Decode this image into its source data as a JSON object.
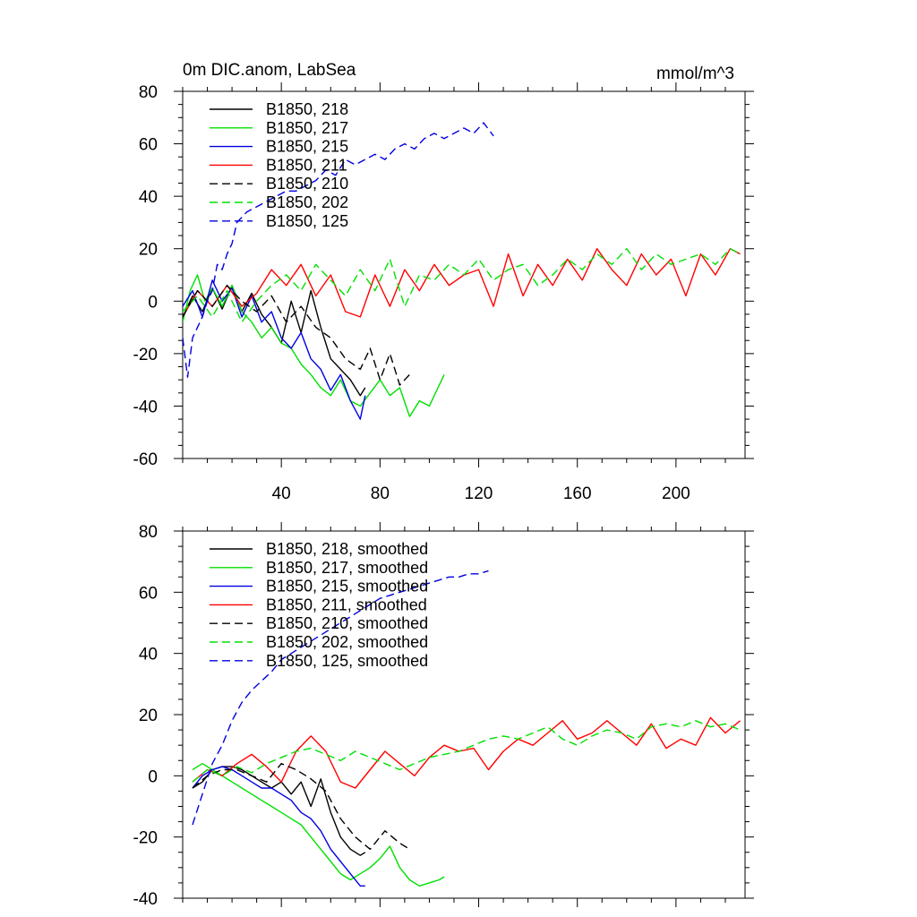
{
  "chart_data": [
    {
      "type": "line",
      "title": "0m DIC.anom, LabSea",
      "units": "mmol/m^3",
      "xlabel": "",
      "ylabel": "",
      "xlim": [
        0,
        228
      ],
      "ylim": [
        -60,
        80
      ],
      "xticks": [
        40,
        80,
        120,
        160,
        200
      ],
      "yticks": [
        -60,
        -40,
        -20,
        0,
        20,
        40,
        60,
        80
      ],
      "show_x_tick_labels": true,
      "legend": "top-left",
      "series": [
        {
          "name": "B1850, 218",
          "color": "#000000",
          "dash": "solid",
          "x": [
            0,
            4,
            8,
            12,
            16,
            20,
            24,
            28,
            32,
            36,
            40,
            44,
            48,
            52,
            56,
            60,
            64,
            68,
            72,
            74
          ],
          "y": [
            -6,
            2,
            -4,
            5,
            -3,
            6,
            -4,
            3,
            -5,
            -10,
            -16,
            0,
            -12,
            4,
            -10,
            -22,
            -26,
            -30,
            -36,
            -33
          ]
        },
        {
          "name": "B1850, 217",
          "color": "#00e000",
          "dash": "solid",
          "x": [
            0,
            3,
            6,
            9,
            12,
            16,
            20,
            24,
            28,
            32,
            36,
            40,
            44,
            48,
            52,
            56,
            60,
            64,
            68,
            72,
            76,
            80,
            84,
            88,
            92,
            96,
            100,
            104,
            106
          ],
          "y": [
            -8,
            4,
            10,
            0,
            5,
            -2,
            6,
            -4,
            -8,
            -14,
            -10,
            -16,
            -18,
            -24,
            -28,
            -33,
            -36,
            -30,
            -38,
            -40,
            -35,
            -30,
            -36,
            -33,
            -44,
            -38,
            -40,
            -32,
            -28
          ]
        },
        {
          "name": "B1850, 215",
          "color": "#0000e0",
          "dash": "solid",
          "x": [
            0,
            4,
            8,
            12,
            16,
            20,
            24,
            28,
            32,
            36,
            40,
            44,
            48,
            52,
            56,
            60,
            64,
            68,
            72,
            74
          ],
          "y": [
            -2,
            4,
            -6,
            8,
            0,
            5,
            -6,
            2,
            -8,
            -4,
            -14,
            -18,
            -12,
            -22,
            -26,
            -34,
            -28,
            -38,
            -45,
            -36
          ]
        },
        {
          "name": "B1850, 211",
          "color": "#ff0000",
          "dash": "solid",
          "x": [
            0,
            6,
            12,
            18,
            24,
            30,
            36,
            42,
            48,
            54,
            60,
            66,
            72,
            78,
            84,
            90,
            96,
            102,
            108,
            114,
            120,
            126,
            132,
            138,
            144,
            150,
            156,
            162,
            168,
            174,
            180,
            186,
            192,
            198,
            204,
            210,
            216,
            222,
            226
          ],
          "y": [
            -6,
            4,
            -2,
            6,
            -2,
            3,
            12,
            6,
            14,
            2,
            10,
            -4,
            -6,
            10,
            -2,
            12,
            4,
            14,
            6,
            10,
            12,
            -2,
            18,
            2,
            14,
            6,
            16,
            8,
            20,
            12,
            6,
            18,
            10,
            16,
            2,
            18,
            10,
            20,
            18
          ]
        },
        {
          "name": "B1850, 210",
          "color": "#000000",
          "dash": "dash",
          "x": [
            0,
            6,
            12,
            18,
            24,
            30,
            36,
            42,
            48,
            54,
            60,
            66,
            72,
            76,
            80,
            84,
            88,
            92
          ],
          "y": [
            -6,
            4,
            -2,
            6,
            0,
            -4,
            2,
            -8,
            -2,
            -10,
            -14,
            -22,
            -26,
            -18,
            -30,
            -20,
            -32,
            -28
          ]
        },
        {
          "name": "B1850, 202",
          "color": "#00e000",
          "dash": "dash",
          "x": [
            0,
            6,
            12,
            18,
            24,
            30,
            36,
            42,
            48,
            54,
            60,
            66,
            72,
            78,
            84,
            90,
            96,
            102,
            108,
            114,
            120,
            126,
            132,
            138,
            144,
            150,
            156,
            162,
            168,
            174,
            180,
            186,
            192,
            198,
            204,
            210,
            216,
            222,
            226
          ],
          "y": [
            -4,
            2,
            -6,
            4,
            -8,
            0,
            6,
            10,
            4,
            14,
            8,
            2,
            12,
            4,
            16,
            -2,
            10,
            8,
            14,
            10,
            16,
            8,
            12,
            14,
            6,
            10,
            16,
            12,
            18,
            14,
            20,
            12,
            18,
            14,
            16,
            18,
            14,
            20,
            18
          ]
        },
        {
          "name": "B1850, 125",
          "color": "#0000e0",
          "dash": "dash",
          "x": [
            0,
            2,
            4,
            6,
            8,
            10,
            12,
            14,
            16,
            18,
            20,
            22,
            26,
            30,
            34,
            38,
            42,
            46,
            50,
            54,
            58,
            62,
            66,
            70,
            74,
            78,
            82,
            86,
            90,
            94,
            98,
            102,
            106,
            110,
            114,
            118,
            122,
            126
          ],
          "y": [
            -14,
            -29,
            -14,
            -10,
            -6,
            0,
            4,
            14,
            12,
            18,
            22,
            30,
            34,
            36,
            38,
            40,
            42,
            42,
            44,
            46,
            50,
            48,
            54,
            52,
            54,
            56,
            54,
            58,
            60,
            58,
            62,
            64,
            62,
            64,
            66,
            64,
            68,
            63
          ]
        }
      ]
    },
    {
      "type": "line",
      "title": "",
      "xlabel": "",
      "ylabel": "",
      "xlim": [
        0,
        228
      ],
      "ylim": [
        -40,
        80
      ],
      "xticks": [
        40,
        80,
        120,
        160,
        200
      ],
      "yticks": [
        -40,
        -20,
        0,
        20,
        40,
        60,
        80
      ],
      "show_x_tick_labels": false,
      "legend": "top-left",
      "series": [
        {
          "name": "B1850, 218, smoothed",
          "color": "#000000",
          "dash": "solid",
          "x": [
            4,
            8,
            12,
            16,
            20,
            24,
            28,
            32,
            36,
            40,
            44,
            48,
            52,
            56,
            60,
            64,
            68,
            72,
            74
          ],
          "y": [
            -4,
            -2,
            2,
            3,
            3,
            2,
            0,
            -2,
            -4,
            -2,
            -6,
            -2,
            -10,
            -1,
            -12,
            -20,
            -24,
            -26,
            -25
          ]
        },
        {
          "name": "B1850, 217, smoothed",
          "color": "#00e000",
          "dash": "solid",
          "x": [
            4,
            8,
            12,
            16,
            20,
            24,
            28,
            32,
            36,
            40,
            44,
            48,
            52,
            56,
            60,
            64,
            68,
            72,
            76,
            80,
            84,
            88,
            92,
            96,
            100,
            104,
            106
          ],
          "y": [
            2,
            4,
            2,
            0,
            -2,
            -4,
            -6,
            -8,
            -10,
            -12,
            -14,
            -16,
            -20,
            -24,
            -28,
            -32,
            -34,
            -32,
            -30,
            -27,
            -23,
            -30,
            -34,
            -36,
            -35,
            -34,
            -33
          ]
        },
        {
          "name": "B1850, 215, smoothed",
          "color": "#0000e0",
          "dash": "solid",
          "x": [
            4,
            8,
            12,
            16,
            20,
            24,
            28,
            32,
            36,
            40,
            44,
            48,
            52,
            56,
            60,
            64,
            68,
            72,
            74
          ],
          "y": [
            -4,
            0,
            2,
            3,
            2,
            0,
            -2,
            -4,
            -4,
            -6,
            -8,
            -12,
            -14,
            -18,
            -24,
            -28,
            -32,
            -36,
            -36
          ]
        },
        {
          "name": "B1850, 211, smoothed",
          "color": "#ff0000",
          "dash": "solid",
          "x": [
            4,
            10,
            16,
            22,
            28,
            34,
            40,
            46,
            52,
            58,
            64,
            70,
            76,
            82,
            88,
            94,
            100,
            106,
            112,
            118,
            124,
            130,
            136,
            142,
            148,
            154,
            160,
            166,
            172,
            178,
            184,
            190,
            196,
            202,
            208,
            214,
            220,
            226
          ],
          "y": [
            -2,
            2,
            0,
            4,
            7,
            3,
            -2,
            8,
            13,
            8,
            -2,
            -4,
            2,
            8,
            4,
            0,
            6,
            10,
            8,
            9,
            2,
            8,
            12,
            10,
            14,
            18,
            12,
            14,
            18,
            14,
            10,
            17,
            9,
            12,
            10,
            19,
            14,
            18
          ]
        },
        {
          "name": "B1850, 210, smoothed",
          "color": "#000000",
          "dash": "dash",
          "x": [
            4,
            10,
            16,
            22,
            28,
            34,
            40,
            46,
            52,
            58,
            64,
            70,
            76,
            82,
            88,
            92
          ],
          "y": [
            -4,
            0,
            2,
            2,
            0,
            -2,
            4,
            2,
            -1,
            -5,
            -14,
            -20,
            -24,
            -18,
            -22,
            -24
          ]
        },
        {
          "name": "B1850, 202, smoothed",
          "color": "#00e000",
          "dash": "dash",
          "x": [
            4,
            10,
            16,
            22,
            28,
            34,
            40,
            46,
            52,
            58,
            64,
            70,
            76,
            82,
            88,
            94,
            100,
            106,
            112,
            118,
            124,
            130,
            136,
            142,
            148,
            154,
            160,
            166,
            172,
            178,
            184,
            190,
            196,
            202,
            208,
            214,
            220,
            226
          ],
          "y": [
            -2,
            2,
            0,
            3,
            1,
            4,
            6,
            8,
            9,
            7,
            5,
            8,
            6,
            4,
            2,
            4,
            6,
            7,
            8,
            10,
            12,
            13,
            12,
            14,
            16,
            12,
            10,
            13,
            15,
            14,
            12,
            16,
            17,
            16,
            18,
            16,
            17,
            15
          ]
        },
        {
          "name": "B1850, 125, smoothed",
          "color": "#0000e0",
          "dash": "dash",
          "x": [
            4,
            8,
            12,
            16,
            20,
            24,
            28,
            32,
            36,
            40,
            44,
            48,
            52,
            56,
            60,
            64,
            68,
            72,
            76,
            80,
            84,
            88,
            92,
            96,
            100,
            104,
            108,
            112,
            116,
            120,
            124
          ],
          "y": [
            -16,
            -6,
            4,
            10,
            18,
            24,
            28,
            31,
            34,
            38,
            40,
            42,
            44,
            46,
            48,
            50,
            52,
            54,
            56,
            58,
            59,
            60,
            61,
            62,
            63,
            64,
            65,
            65,
            66,
            66,
            67
          ]
        }
      ]
    }
  ]
}
